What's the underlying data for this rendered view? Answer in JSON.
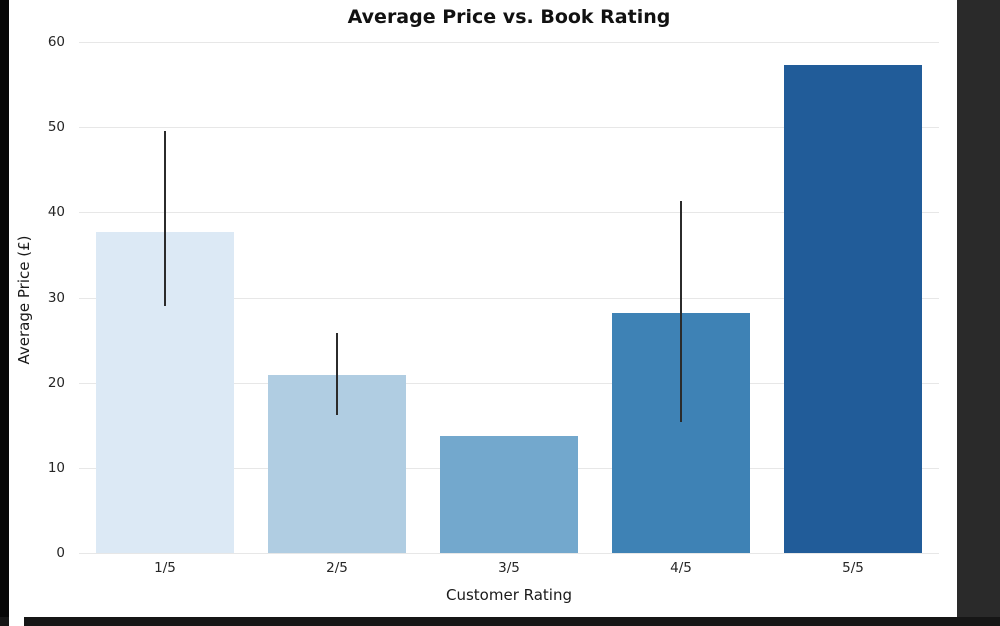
{
  "chart_data": {
    "type": "bar",
    "title": "Average Price vs. Book Rating",
    "xlabel": "Customer Rating",
    "ylabel": "Average Price (£)",
    "categories": [
      "1/5",
      "2/5",
      "3/5",
      "4/5",
      "5/5"
    ],
    "values": [
      37.7,
      20.9,
      13.7,
      28.2,
      57.3
    ],
    "error_low": [
      29.0,
      16.2,
      null,
      15.4,
      null
    ],
    "error_high": [
      49.5,
      25.8,
      null,
      41.3,
      null
    ],
    "bar_colors": [
      "#dce9f5",
      "#b0cde2",
      "#73a8cd",
      "#3e82b5",
      "#215c99"
    ],
    "error_color": "#2b2b2b",
    "ylim": [
      0,
      60
    ],
    "yticks": [
      0,
      10,
      20,
      30,
      40,
      50,
      60
    ],
    "grid": true,
    "legend": "none",
    "bar_width_fraction": 0.8,
    "plot_background": "#ffffff"
  }
}
